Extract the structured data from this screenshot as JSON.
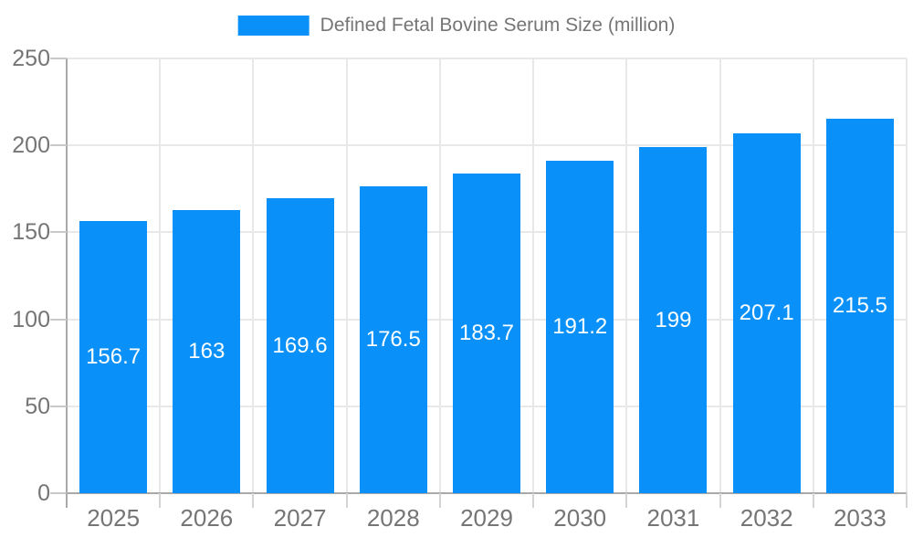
{
  "legend": {
    "label": "Defined Fetal Bovine Serum Size (million)"
  },
  "chart_data": {
    "type": "bar",
    "title": "Defined Fetal Bovine Serum Size (million)",
    "categories": [
      "2025",
      "2026",
      "2027",
      "2028",
      "2029",
      "2030",
      "2031",
      "2032",
      "2033"
    ],
    "values": [
      156.7,
      163,
      169.6,
      176.5,
      183.7,
      191.2,
      199,
      207.1,
      215.5
    ],
    "value_labels": [
      "156.7",
      "163",
      "169.6",
      "176.5",
      "183.7",
      "191.2",
      "199",
      "207.1",
      "215.5"
    ],
    "xlabel": "",
    "ylabel": "",
    "ylim": [
      0,
      250
    ],
    "yticks": [
      0,
      50,
      100,
      150,
      200,
      250
    ],
    "ytick_labels": [
      "0",
      "50",
      "100",
      "150",
      "200",
      "250"
    ],
    "grid": true,
    "legend_position": "top-center",
    "colors": {
      "bar": "#0991f9",
      "value_label": "#ffffff",
      "axis": "#a9a9a9",
      "grid": "#e8e8e8",
      "ytick": "#c9c9c9",
      "xtick": "#d4d4d4",
      "text": "#757575"
    }
  }
}
